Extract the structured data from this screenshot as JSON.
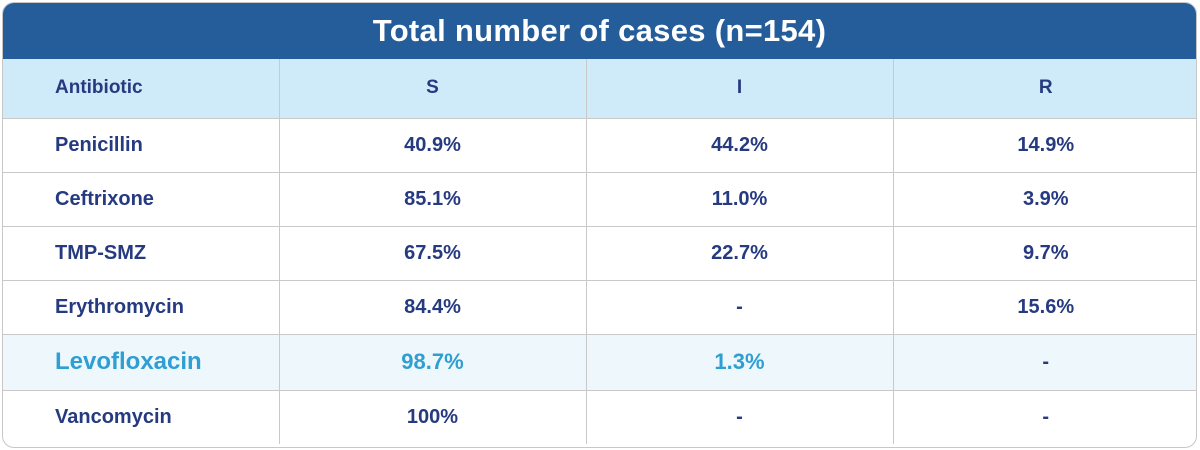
{
  "chart_data": {
    "type": "table",
    "title": "Total number of cases (n=154)",
    "columns": [
      "Antibiotic",
      "S",
      "I",
      "R"
    ],
    "rows": [
      {
        "antibiotic": "Penicillin",
        "S": "40.9%",
        "I": "44.2%",
        "R": "14.9%"
      },
      {
        "antibiotic": "Ceftrixone",
        "S": "85.1%",
        "I": "11.0%",
        "R": "3.9%"
      },
      {
        "antibiotic": "TMP-SMZ",
        "S": "67.5%",
        "I": "22.7%",
        "R": "9.7%"
      },
      {
        "antibiotic": "Erythromycin",
        "S": "84.4%",
        "I": "-",
        "R": "15.6%"
      },
      {
        "antibiotic": "Levofloxacin",
        "S": "98.7%",
        "I": "1.3%",
        "R": "-"
      },
      {
        "antibiotic": "Vancomycin",
        "S": "100%",
        "I": "-",
        "R": "-"
      }
    ],
    "highlighted_row": "Levofloxacin"
  },
  "colors": {
    "title_bar": "#245d99",
    "header_row": "#cfeaf8",
    "text": "#263a80",
    "highlight_text": "#2e9ed3",
    "highlight_row": "#eef8fc"
  }
}
